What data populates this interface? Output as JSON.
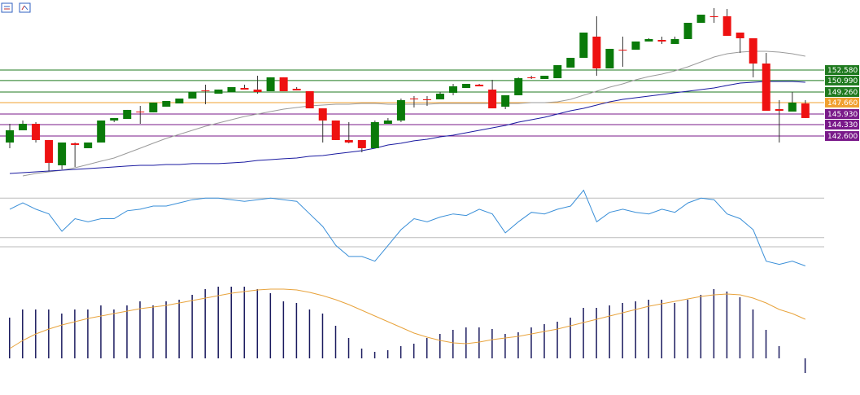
{
  "chart_data": [
    {
      "type": "candlestick",
      "up_color": "#0a7a0a",
      "down_color": "#ee1111",
      "wick_color": "#333333",
      "ylim": [
        134.84,
        163.18
      ],
      "open": [
        141.62,
        143.47,
        144.45,
        141.99,
        138.17,
        141.5,
        140.76,
        141.62,
        144.95,
        145.19,
        146.3,
        146.18,
        147.04,
        147.53,
        148.27,
        149.5,
        149.01,
        149.26,
        149.87,
        149.63,
        149.38,
        151.48,
        149.75,
        149.38,
        146.79,
        144.95,
        141.99,
        141.99,
        140.76,
        144.45,
        144.95,
        148.27,
        148.15,
        148.15,
        149.14,
        149.87,
        150.37,
        149.63,
        147.04,
        148.77,
        151.48,
        151.23,
        151.35,
        152.95,
        154.43,
        157.64,
        152.83,
        155.66,
        155.66,
        156.9,
        157.14,
        156.53,
        157.27,
        159.73,
        160.72,
        160.72,
        158.25,
        157.39,
        153.57,
        146.67,
        146.3,
        147.53
      ],
      "high": [
        144.45,
        144.95,
        144.7,
        141.99,
        141.62,
        141.62,
        141.62,
        144.95,
        145.32,
        146.55,
        147.16,
        147.66,
        147.9,
        148.27,
        149.26,
        150.37,
        149.63,
        150.0,
        150.37,
        151.72,
        151.48,
        151.48,
        150.0,
        149.38,
        146.79,
        144.95,
        144.7,
        141.99,
        144.95,
        145.32,
        148.27,
        148.64,
        148.64,
        149.26,
        150.49,
        150.49,
        150.49,
        151.11,
        148.77,
        151.48,
        151.72,
        151.72,
        153.32,
        154.43,
        158.25,
        160.72,
        155.79,
        157.64,
        156.9,
        157.39,
        157.64,
        157.64,
        159.73,
        160.96,
        161.95,
        161.82,
        158.25,
        157.39,
        155.17,
        148.03,
        149.26,
        148.03
      ],
      "low": [
        140.76,
        143.47,
        141.62,
        137.31,
        137.55,
        137.92,
        140.76,
        141.62,
        144.7,
        145.19,
        144.45,
        146.18,
        147.04,
        147.53,
        148.27,
        147.41,
        149.01,
        149.26,
        149.63,
        149.01,
        149.38,
        149.38,
        149.5,
        146.79,
        141.62,
        141.99,
        141.5,
        140.14,
        140.76,
        144.45,
        144.7,
        146.92,
        147.16,
        148.15,
        148.77,
        149.87,
        150.12,
        146.79,
        146.67,
        148.77,
        151.23,
        151.23,
        151.35,
        152.95,
        154.43,
        151.72,
        152.83,
        153.08,
        155.66,
        156.9,
        156.53,
        156.53,
        157.27,
        159.73,
        159.73,
        157.76,
        155.17,
        151.48,
        146.42,
        141.62,
        146.3,
        145.32
      ],
      "close": [
        143.47,
        144.45,
        141.99,
        138.54,
        141.62,
        141.25,
        141.62,
        144.95,
        145.32,
        146.55,
        146.18,
        147.66,
        147.9,
        148.27,
        149.26,
        149.38,
        149.63,
        150.0,
        149.63,
        149.26,
        151.48,
        149.38,
        149.5,
        146.79,
        144.95,
        141.99,
        141.62,
        140.76,
        144.7,
        144.95,
        148.03,
        148.15,
        148.03,
        149.01,
        150.12,
        150.49,
        150.12,
        146.79,
        148.77,
        151.35,
        151.35,
        151.72,
        153.32,
        154.43,
        158.25,
        152.83,
        155.79,
        155.54,
        156.9,
        157.27,
        156.9,
        157.27,
        159.73,
        160.96,
        160.59,
        157.76,
        157.39,
        153.57,
        146.42,
        146.42,
        147.66,
        145.32
      ],
      "moving_averages": [
        {
          "color": "#9a9a9a",
          "values": [
            null,
            136.57,
            136.94,
            137.18,
            137.43,
            137.8,
            138.29,
            138.79,
            139.28,
            140.02,
            140.76,
            141.5,
            142.24,
            142.85,
            143.47,
            144.08,
            144.58,
            145.07,
            145.56,
            145.93,
            146.3,
            146.67,
            146.92,
            147.16,
            147.29,
            147.41,
            147.41,
            147.53,
            147.53,
            147.41,
            147.41,
            147.41,
            147.41,
            147.53,
            147.53,
            147.53,
            147.53,
            147.53,
            147.53,
            147.53,
            147.66,
            147.66,
            147.78,
            148.15,
            148.77,
            149.38,
            150.0,
            150.49,
            151.11,
            151.6,
            151.97,
            152.46,
            153.08,
            153.82,
            154.56,
            155.05,
            155.3,
            155.42,
            155.42,
            155.3,
            155.05,
            154.68
          ]
        },
        {
          "color": "#1a1aa0",
          "values": [
            136.94,
            137.06,
            137.18,
            137.31,
            137.43,
            137.55,
            137.68,
            137.8,
            137.92,
            138.05,
            138.17,
            138.17,
            138.29,
            138.29,
            138.42,
            138.42,
            138.42,
            138.54,
            138.66,
            138.91,
            139.03,
            139.16,
            139.28,
            139.53,
            139.65,
            139.9,
            140.14,
            140.39,
            140.76,
            141.25,
            141.5,
            141.87,
            142.11,
            142.48,
            142.73,
            143.1,
            143.47,
            143.84,
            144.21,
            144.7,
            145.07,
            145.44,
            145.93,
            146.42,
            146.79,
            147.29,
            147.78,
            148.15,
            148.4,
            148.64,
            148.89,
            149.14,
            149.38,
            149.63,
            149.87,
            150.25,
            150.61,
            150.74,
            150.86,
            150.86,
            150.86,
            150.74
          ]
        }
      ],
      "levels": [
        {
          "value": 152.58,
          "label": "152.580",
          "color": "#1f7a1f"
        },
        {
          "value": 150.99,
          "label": "150.990",
          "color": "#1f7a1f"
        },
        {
          "value": 149.26,
          "label": "149.260",
          "color": "#1f7a1f"
        },
        {
          "value": 147.66,
          "label": "147.660",
          "color": "#f0a030"
        },
        {
          "value": 145.93,
          "label": "145.930",
          "color": "#7a1a8a"
        },
        {
          "value": 144.33,
          "label": "144.330",
          "color": "#7a1a8a"
        },
        {
          "value": 142.6,
          "label": "142.600",
          "color": "#7a1a8a"
        }
      ]
    },
    {
      "type": "line",
      "color": "#3a8fd8",
      "ylim": [
        0,
        100
      ],
      "reference_lines": [
        70,
        30
      ],
      "reference_color": "#bbbbbb",
      "values": [
        58.8,
        65.2,
        58.8,
        54,
        36.4,
        49.2,
        46,
        49.2,
        49.2,
        57.2,
        58.8,
        62,
        62,
        65.2,
        68.4,
        70,
        70,
        68.4,
        66.8,
        68.4,
        70,
        68.4,
        66.8,
        54,
        41.2,
        22,
        10.8,
        10.8,
        6,
        22,
        38,
        49.2,
        46,
        50.8,
        54,
        52.4,
        58.8,
        54,
        34.8,
        46,
        55.6,
        54,
        58.8,
        62,
        78,
        46,
        55.6,
        58.8,
        55.6,
        54,
        58.8,
        55.6,
        65.2,
        70,
        68.4,
        54,
        49.2,
        38,
        6,
        2.8,
        6,
        1.2
      ]
    },
    {
      "type": "bar",
      "color": "#1a1a5e",
      "signal_color": "#e8a33c",
      "ylim": [
        -40,
        110
      ],
      "values": [
        50,
        60,
        60,
        60,
        55,
        60,
        60,
        65,
        60,
        65,
        70,
        65,
        70,
        72,
        78,
        85,
        88,
        88,
        88,
        85,
        80,
        70,
        68,
        60,
        55,
        40,
        25,
        12,
        8,
        10,
        15,
        18,
        25,
        30,
        35,
        38,
        38,
        36,
        30,
        32,
        38,
        42,
        45,
        50,
        62,
        62,
        65,
        68,
        70,
        72,
        72,
        68,
        72,
        78,
        85,
        82,
        75,
        60,
        35,
        15,
        0,
        -18
      ],
      "signal": [
        12,
        22,
        30,
        36,
        41,
        45,
        49,
        52,
        55,
        58,
        61,
        63,
        65,
        68,
        71,
        74,
        77,
        80,
        82,
        84,
        85,
        85,
        84,
        81,
        77,
        72,
        66,
        59,
        52,
        45,
        38,
        31,
        26,
        22,
        19,
        18,
        20,
        23,
        25,
        27,
        30,
        33,
        36,
        40,
        44,
        48,
        52,
        56,
        60,
        64,
        67,
        70,
        73,
        76,
        78,
        79,
        78,
        74,
        68,
        60,
        55,
        48
      ]
    }
  ]
}
